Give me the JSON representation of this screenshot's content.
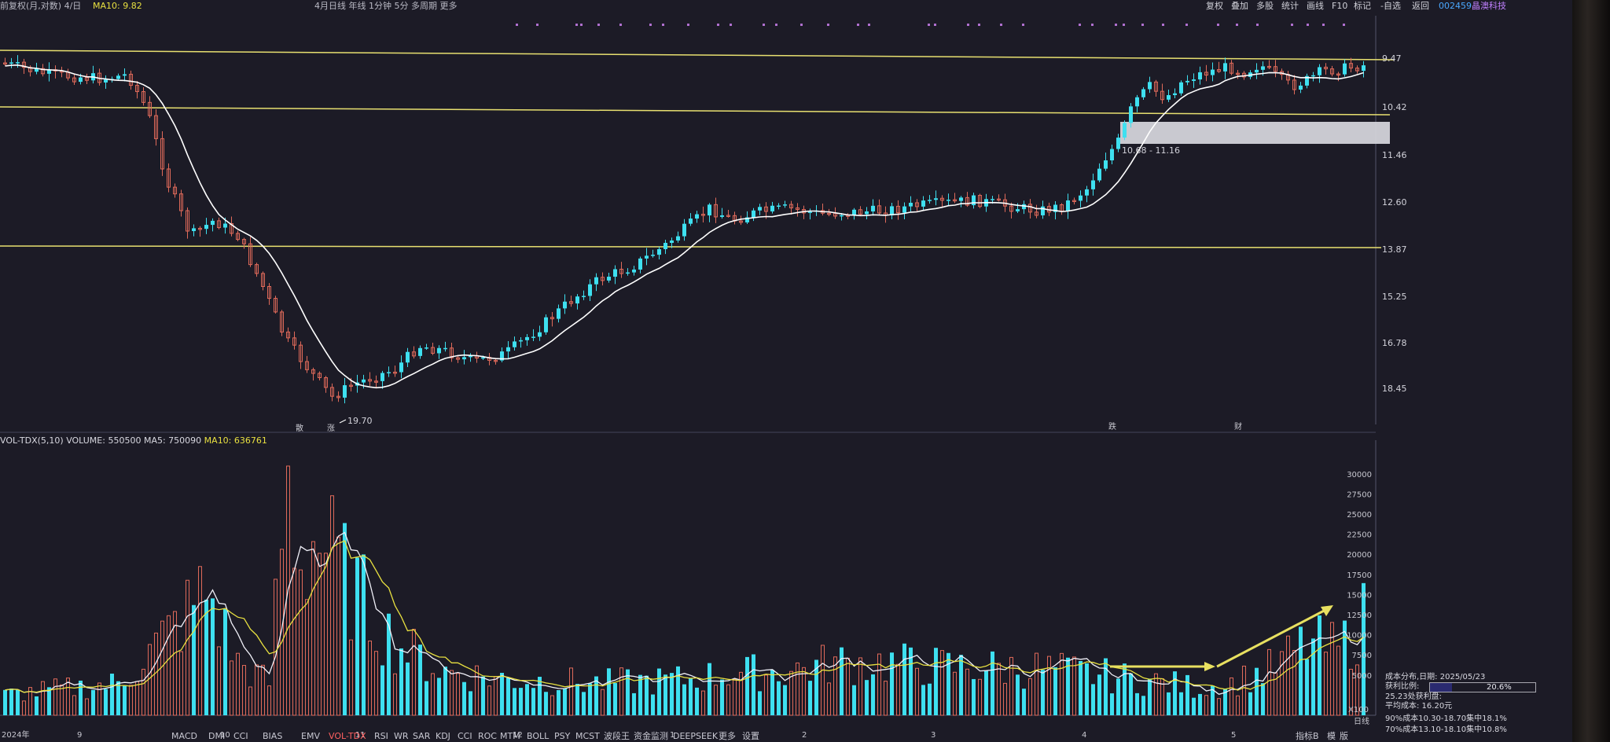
{
  "topbar": {
    "left_text": "前复权(月,对数) 4/日",
    "ma10_label": "MA10: 9.82",
    "middle_text": "4月日线  年线  1分钟  5分  多周期  更多",
    "buttons": [
      "复权",
      "叠加",
      "多股",
      "统计",
      "画线",
      "F10",
      "标记",
      "-自选",
      "返回"
    ],
    "stock_code": "002459",
    "stock_name": "晶澳科技"
  },
  "price_axis": {
    "labels": [
      "9.47",
      "10.42",
      "11.46",
      "12.60",
      "13.87",
      "15.25",
      "16.78",
      "18.45"
    ],
    "inverted": true,
    "scale": "log"
  },
  "annotations": {
    "low_label": "19.70",
    "zone_label": "10.68 - 11.16",
    "event_markers": [
      "散",
      "涨",
      "跌",
      "财"
    ]
  },
  "volume_panel": {
    "title": "VOL-TDX(5,10)",
    "volume": "VOLUME: 550500",
    "ma5": "MA5: 750090",
    "ma10": "MA10: 636761",
    "axis_labels": [
      "30000",
      "27500",
      "25000",
      "22500",
      "20000",
      "17500",
      "15000",
      "12500",
      "10000",
      "7500",
      "5000"
    ],
    "unit": "X100"
  },
  "time_axis": {
    "labels": [
      "2024年",
      "9",
      "10",
      "11",
      "12",
      "1",
      "2",
      "3",
      "4",
      "5"
    ],
    "right_label": "日线"
  },
  "indicator_tabs": [
    "MACD",
    "DMI",
    "CCI",
    "BIAS",
    "EMV",
    "VOL-TDX",
    "RSI",
    "WR",
    "SAR",
    "KDJ",
    "CCI",
    "ROC",
    "MTM",
    "BOLL",
    "PSY",
    "MCST",
    "波段王",
    "资金监测",
    "DEEPSEEK",
    "更多",
    "设置"
  ],
  "active_tab": "VOL-TDX",
  "bottom_right": [
    "指标B",
    "模",
    "版"
  ],
  "cost_info": {
    "title": "成本分布,日期: 2025/05/23",
    "profit_ratio_label": "获利比例:",
    "profit_ratio": "20.6%",
    "profit_ratio_value": 0.206,
    "profit_line": "25.23处获利盘:",
    "avg_cost": "平均成本: 16.20元",
    "range90": "90%成本10.30-18.70集中18.1%",
    "range70": "70%成本13.10-18.10集中10.8%"
  },
  "colors": {
    "up": "#3ee0f0",
    "down": "#e06a5a",
    "ma_white": "#ffffff",
    "ma_yellow": "#e8e040",
    "support_line": "#e8e070",
    "background": "#1c1b26"
  }
}
